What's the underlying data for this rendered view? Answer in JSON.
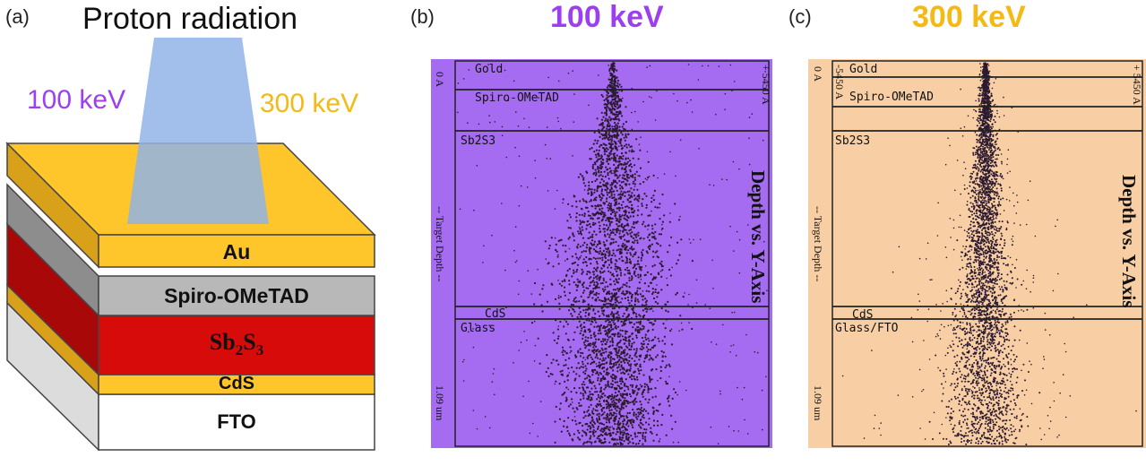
{
  "colors": {
    "accent_100kev": "#9b3ff0",
    "accent_300kev": "#f5b914",
    "gold": "#ffc62b",
    "spiro": "#b8b8b8",
    "sb2s3": "#d80b0b",
    "cds": "#ffc62b",
    "fto": "#ffffff",
    "beam": "#92b3e6",
    "sim_bg_b": "#a56cf2",
    "sim_bg_c": "#f8cfa4",
    "ion_track": "#2b1a30"
  },
  "panel_a": {
    "label": "(a)",
    "title": "Proton radiation",
    "energy_left": "100 keV",
    "energy_right": "300 keV",
    "layers": {
      "au": "Au",
      "spiro": "Spiro-OMeTAD",
      "sb2s3_base1": "Sb",
      "sb2s3_sub1": "2",
      "sb2s3_base2": "S",
      "sb2s3_sub2": "3",
      "cds": "CdS",
      "fto": "FTO"
    }
  },
  "panel_b": {
    "label": "(b)",
    "title": "100 keV",
    "layers": [
      "Gold",
      "Spiro-OMeTAD",
      "Sb2S3",
      "CdS",
      "Glass"
    ],
    "axis_top": "0 A",
    "axis_mid": "-- Target Depth --",
    "axis_bottom": "1.09 um",
    "axis_right": "+ 5450 A",
    "side_title": "Depth vs. Y-Axis"
  },
  "panel_c": {
    "label": "(c)",
    "title": "300 keV",
    "layers": [
      "Gold",
      "Spiro-OMeTAD",
      "Sb2S3",
      "CdS",
      "Glass/FTO"
    ],
    "axis_top": "0 A",
    "axis_left_top": "-5450 A",
    "axis_mid": "-- Target Depth --",
    "axis_bottom": "1.09 um",
    "axis_right": "+ 5450 A",
    "side_title": "Depth vs. Y-Axis"
  }
}
